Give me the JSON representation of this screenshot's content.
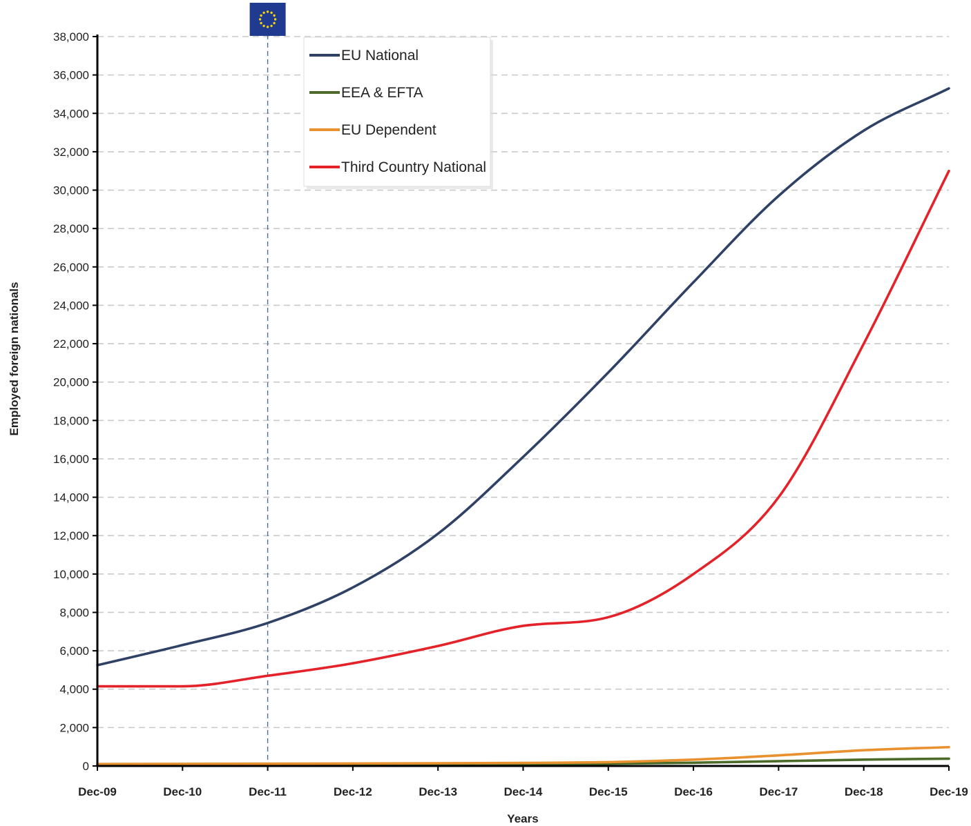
{
  "chart_data": {
    "type": "line",
    "xlabel": "Years",
    "ylabel": "Employed foreign nationals",
    "categories": [
      "Dec-09",
      "Dec-10",
      "Dec-11",
      "Dec-12",
      "Dec-13",
      "Dec-14",
      "Dec-15",
      "Dec-16",
      "Dec-17",
      "Dec-18",
      "Dec-19"
    ],
    "ylim": [
      0,
      38000
    ],
    "yticks": [
      0,
      2000,
      4000,
      6000,
      8000,
      10000,
      12000,
      14000,
      16000,
      18000,
      20000,
      22000,
      24000,
      26000,
      28000,
      30000,
      32000,
      34000,
      36000,
      38000
    ],
    "ytick_labels": [
      "0",
      "2,000",
      "4,000",
      "6,000",
      "8,000",
      "10,000",
      "12,000",
      "14,000",
      "16,000",
      "18,000",
      "20,000",
      "22,000",
      "24,000",
      "26,000",
      "28,000",
      "30,000",
      "32,000",
      "34,000",
      "36,000",
      "38,000"
    ],
    "grid": "horizontal dashed",
    "legend_position": "top-left",
    "marker": {
      "category": "Dec-11",
      "style": "vertical dashed line",
      "icon": "eu-flag-icon"
    },
    "series": [
      {
        "name": "EU National",
        "color": "#2f4265",
        "values": [
          5250,
          6300,
          7450,
          9300,
          12100,
          16100,
          20500,
          25200,
          29700,
          33100,
          35300
        ]
      },
      {
        "name": "EEA & EFTA",
        "color": "#4c6b28",
        "values": [
          50,
          60,
          70,
          80,
          90,
          100,
          120,
          170,
          250,
          330,
          380
        ]
      },
      {
        "name": "EU Dependent",
        "color": "#e8912e",
        "values": [
          100,
          110,
          120,
          130,
          140,
          160,
          200,
          330,
          550,
          820,
          980
        ]
      },
      {
        "name": "Third Country National",
        "color": "#e3222a",
        "values": [
          4150,
          4150,
          4700,
          5350,
          6250,
          7300,
          7750,
          10000,
          14000,
          22000,
          31000
        ]
      }
    ]
  }
}
